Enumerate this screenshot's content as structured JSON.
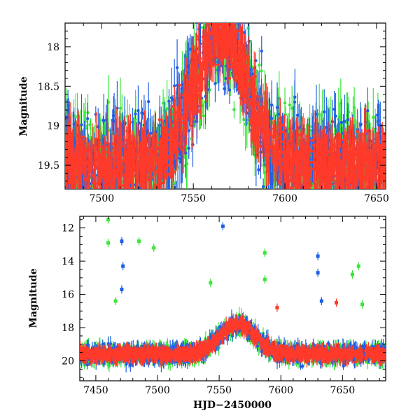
{
  "figure": {
    "colors": {
      "blue": "#1f5fe6",
      "red": "#ff3a2a",
      "green": "#3ae63a",
      "axis": "#000000"
    }
  },
  "chart_data": [
    {
      "type": "scatter",
      "title": "",
      "xlabel": "",
      "ylabel": "Magnitude",
      "xlim": [
        7480,
        7655
      ],
      "ylim": [
        19.8,
        17.7
      ],
      "y_inverted": true,
      "xticks": [
        7500,
        7550,
        7600,
        7650
      ],
      "yticks": [
        18,
        18.5,
        19,
        19.5
      ],
      "error_bars": true,
      "series": [
        {
          "color": "#1f5fe6",
          "description": "blue points"
        },
        {
          "color": "#3ae63a",
          "description": "green points"
        },
        {
          "color": "#ff3a2a",
          "description": "red points"
        }
      ],
      "peak": {
        "x": 7565,
        "y": 17.8
      },
      "baseline_mag": 19.5
    },
    {
      "type": "scatter",
      "title": "",
      "xlabel": "HJD−2450000",
      "ylabel": "Magnitude",
      "xlim": [
        7437,
        7685
      ],
      "ylim": [
        21.2,
        11.3
      ],
      "y_inverted": true,
      "xticks": [
        7450,
        7500,
        7550,
        7600,
        7650
      ],
      "yticks": [
        12,
        14,
        16,
        18,
        20
      ],
      "error_bars": true,
      "series": [
        {
          "color": "#1f5fe6",
          "description": "blue points"
        },
        {
          "color": "#3ae63a",
          "description": "green points"
        },
        {
          "color": "#ff3a2a",
          "description": "red points"
        }
      ],
      "peak": {
        "x": 7565,
        "y": 17.8
      },
      "baseline_mag": 19.6,
      "outliers": [
        {
          "x": 7553,
          "y": 11.9,
          "series": "blue"
        },
        {
          "x": 7471,
          "y": 12.8,
          "series": "blue"
        },
        {
          "x": 7472,
          "y": 14.3,
          "series": "blue"
        },
        {
          "x": 7471,
          "y": 15.7,
          "series": "blue"
        },
        {
          "x": 7630,
          "y": 13.7,
          "series": "blue"
        },
        {
          "x": 7630,
          "y": 14.7,
          "series": "blue"
        },
        {
          "x": 7633,
          "y": 16.4,
          "series": "blue"
        },
        {
          "x": 7460,
          "y": 11.5,
          "series": "green"
        },
        {
          "x": 7460,
          "y": 12.9,
          "series": "green"
        },
        {
          "x": 7485,
          "y": 12.8,
          "series": "green"
        },
        {
          "x": 7497,
          "y": 13.2,
          "series": "green"
        },
        {
          "x": 7466,
          "y": 16.4,
          "series": "green"
        },
        {
          "x": 7543,
          "y": 15.3,
          "series": "green"
        },
        {
          "x": 7587,
          "y": 13.5,
          "series": "green"
        },
        {
          "x": 7587,
          "y": 15.1,
          "series": "green"
        },
        {
          "x": 7663,
          "y": 14.3,
          "series": "green"
        },
        {
          "x": 7658,
          "y": 14.8,
          "series": "green"
        },
        {
          "x": 7666,
          "y": 16.6,
          "series": "green"
        },
        {
          "x": 7645,
          "y": 16.5,
          "series": "red"
        },
        {
          "x": 7597,
          "y": 16.8,
          "series": "red"
        }
      ]
    }
  ]
}
